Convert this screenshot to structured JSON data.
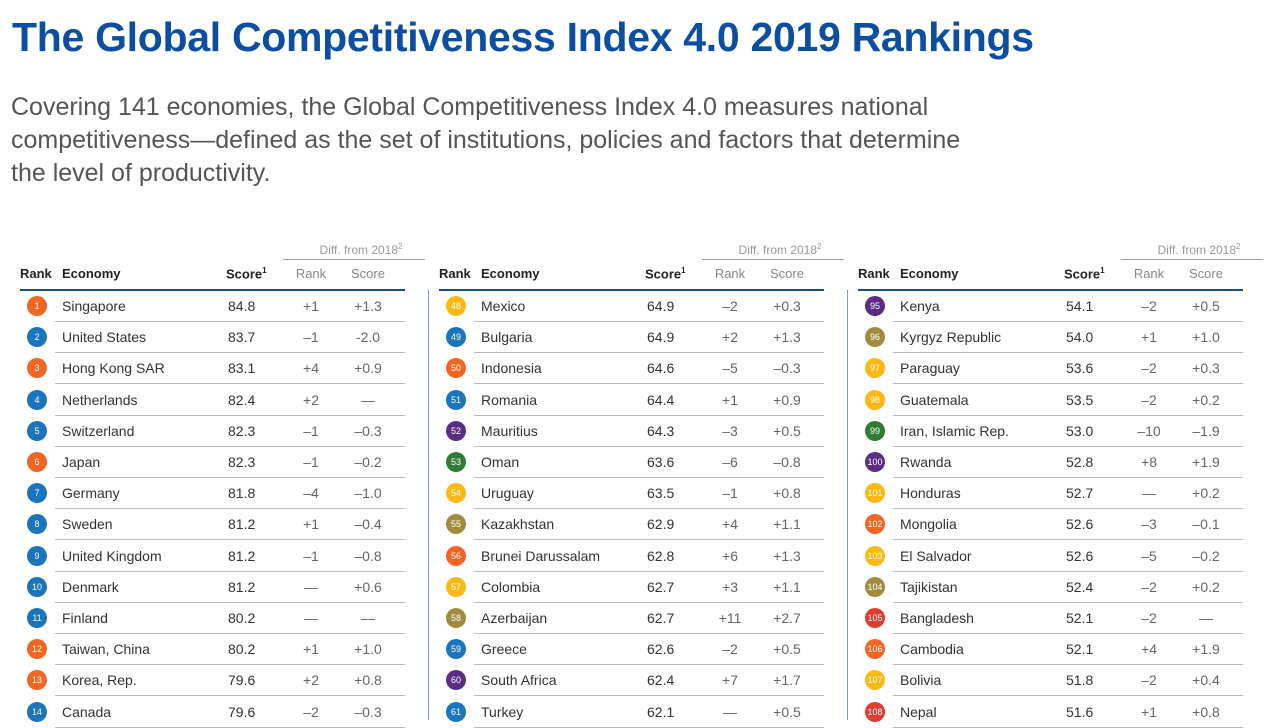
{
  "header": {
    "title": "The Global Competitiveness Index 4.0 2019 Rankings",
    "subtitle": [
      "Covering 141 economies, the Global Competitiveness Index 4.0 measures national",
      "competitiveness—defined as the set of institutions, policies and factors that determine",
      "the level of productivity."
    ]
  },
  "columns": {
    "group": "Diff. from 2018",
    "group_note": "2",
    "rank": "Rank",
    "economy": "Economy",
    "score": "Score",
    "score_note": "1",
    "diff_rank": "Rank",
    "diff_score": "Score"
  },
  "tables": [
    {
      "rows": [
        [
          "1",
          "Singapore",
          "84.8",
          "+1",
          "+1.3"
        ],
        [
          "2",
          "United States",
          "83.7",
          "–1",
          "-2.0"
        ],
        [
          "3",
          "Hong Kong SAR",
          "83.1",
          "+4",
          "+0.9"
        ],
        [
          "4",
          "Netherlands",
          "82.4",
          "+2",
          "—"
        ],
        [
          "5",
          "Switzerland",
          "82.3",
          "–1",
          "–0.3"
        ],
        [
          "6",
          "Japan",
          "82.3",
          "–1",
          "–0.2"
        ],
        [
          "7",
          "Germany",
          "81.8",
          "–4",
          "–1.0"
        ],
        [
          "8",
          "Sweden",
          "81.2",
          "+1",
          "–0.4"
        ],
        [
          "9",
          "United Kingdom",
          "81.2",
          "–1",
          "–0.8"
        ],
        [
          "10",
          "Denmark",
          "81.2",
          "—",
          "+0.6"
        ],
        [
          "11",
          "Finland",
          "80.2",
          "—",
          "—"
        ],
        [
          "12",
          "Taiwan, China",
          "80.2",
          "+1",
          "+1.0"
        ],
        [
          "13",
          "Korea, Rep.",
          "79.6",
          "+2",
          "+0.8"
        ],
        [
          "14",
          "Canada",
          "79.6",
          "–2",
          "–0.3"
        ]
      ],
      "colors": [
        "#f26522",
        "#1b75bc",
        "#f26522",
        "#1b75bc",
        "#1b75bc",
        "#f26522",
        "#1b75bc",
        "#1b75bc",
        "#1b75bc",
        "#1b75bc",
        "#1b75bc",
        "#f26522",
        "#f26522",
        "#1b75bc"
      ]
    },
    {
      "rows": [
        [
          "48",
          "Mexico",
          "64.9",
          "–2",
          "+0.3"
        ],
        [
          "49",
          "Bulgaria",
          "64.9",
          "+2",
          "+1.3"
        ],
        [
          "50",
          "Indonesia",
          "64.6",
          "–5",
          "–0.3"
        ],
        [
          "51",
          "Romania",
          "64.4",
          "+1",
          "+0.9"
        ],
        [
          "52",
          "Mauritius",
          "64.3",
          "–3",
          "+0.5"
        ],
        [
          "53",
          "Oman",
          "63.6",
          "–6",
          "–0.8"
        ],
        [
          "54",
          "Uruguay",
          "63.5",
          "–1",
          "+0.8"
        ],
        [
          "55",
          "Kazakhstan",
          "62.9",
          "+4",
          "+1.1"
        ],
        [
          "56",
          "Brunei Darussalam",
          "62.8",
          "+6",
          "+1.3"
        ],
        [
          "57",
          "Colombia",
          "62.7",
          "+3",
          "+1.1"
        ],
        [
          "58",
          "Azerbaijan",
          "62.7",
          "+11",
          "+2.7"
        ],
        [
          "59",
          "Greece",
          "62.6",
          "–2",
          "+0.5"
        ],
        [
          "60",
          "South Africa",
          "62.4",
          "+7",
          "+1.7"
        ],
        [
          "61",
          "Turkey",
          "62.1",
          "—",
          "+0.5"
        ]
      ],
      "colors": [
        "#fdb913",
        "#1b75bc",
        "#f26522",
        "#1b75bc",
        "#5b2c83",
        "#2e7d32",
        "#fdb913",
        "#a08c3c",
        "#f26522",
        "#fdb913",
        "#a08c3c",
        "#1b75bc",
        "#5b2c83",
        "#1b75bc"
      ]
    },
    {
      "rows": [
        [
          "95",
          "Kenya",
          "54.1",
          "–2",
          "+0.5"
        ],
        [
          "96",
          "Kyrgyz Republic",
          "54.0",
          "+1",
          "+1.0"
        ],
        [
          "97",
          "Paraguay",
          "53.6",
          "–2",
          "+0.3"
        ],
        [
          "98",
          "Guatemala",
          "53.5",
          "–2",
          "+0.2"
        ],
        [
          "99",
          "Iran, Islamic Rep.",
          "53.0",
          "–10",
          "–1.9"
        ],
        [
          "100",
          "Rwanda",
          "52.8",
          "+8",
          "+1.9"
        ],
        [
          "101",
          "Honduras",
          "52.7",
          "—",
          "+0.2"
        ],
        [
          "102",
          "Mongolia",
          "52.6",
          "–3",
          "–0.1"
        ],
        [
          "103",
          "El Salvador",
          "52.6",
          "–5",
          "–0.2"
        ],
        [
          "104",
          "Tajikistan",
          "52.4",
          "–2",
          "+0.2"
        ],
        [
          "105",
          "Bangladesh",
          "52.1",
          "–2",
          "—"
        ],
        [
          "106",
          "Cambodia",
          "52.1",
          "+4",
          "+1.9"
        ],
        [
          "107",
          "Bolivia",
          "51.8",
          "–2",
          "+0.4"
        ],
        [
          "108",
          "Nepal",
          "51.6",
          "+1",
          "+0.8"
        ]
      ],
      "colors": [
        "#5b2c83",
        "#a08c3c",
        "#fdb913",
        "#fdb913",
        "#2e7d32",
        "#5b2c83",
        "#fdb913",
        "#f26522",
        "#fdb913",
        "#a08c3c",
        "#e03c31",
        "#f26522",
        "#fdb913",
        "#e03c31"
      ]
    }
  ]
}
